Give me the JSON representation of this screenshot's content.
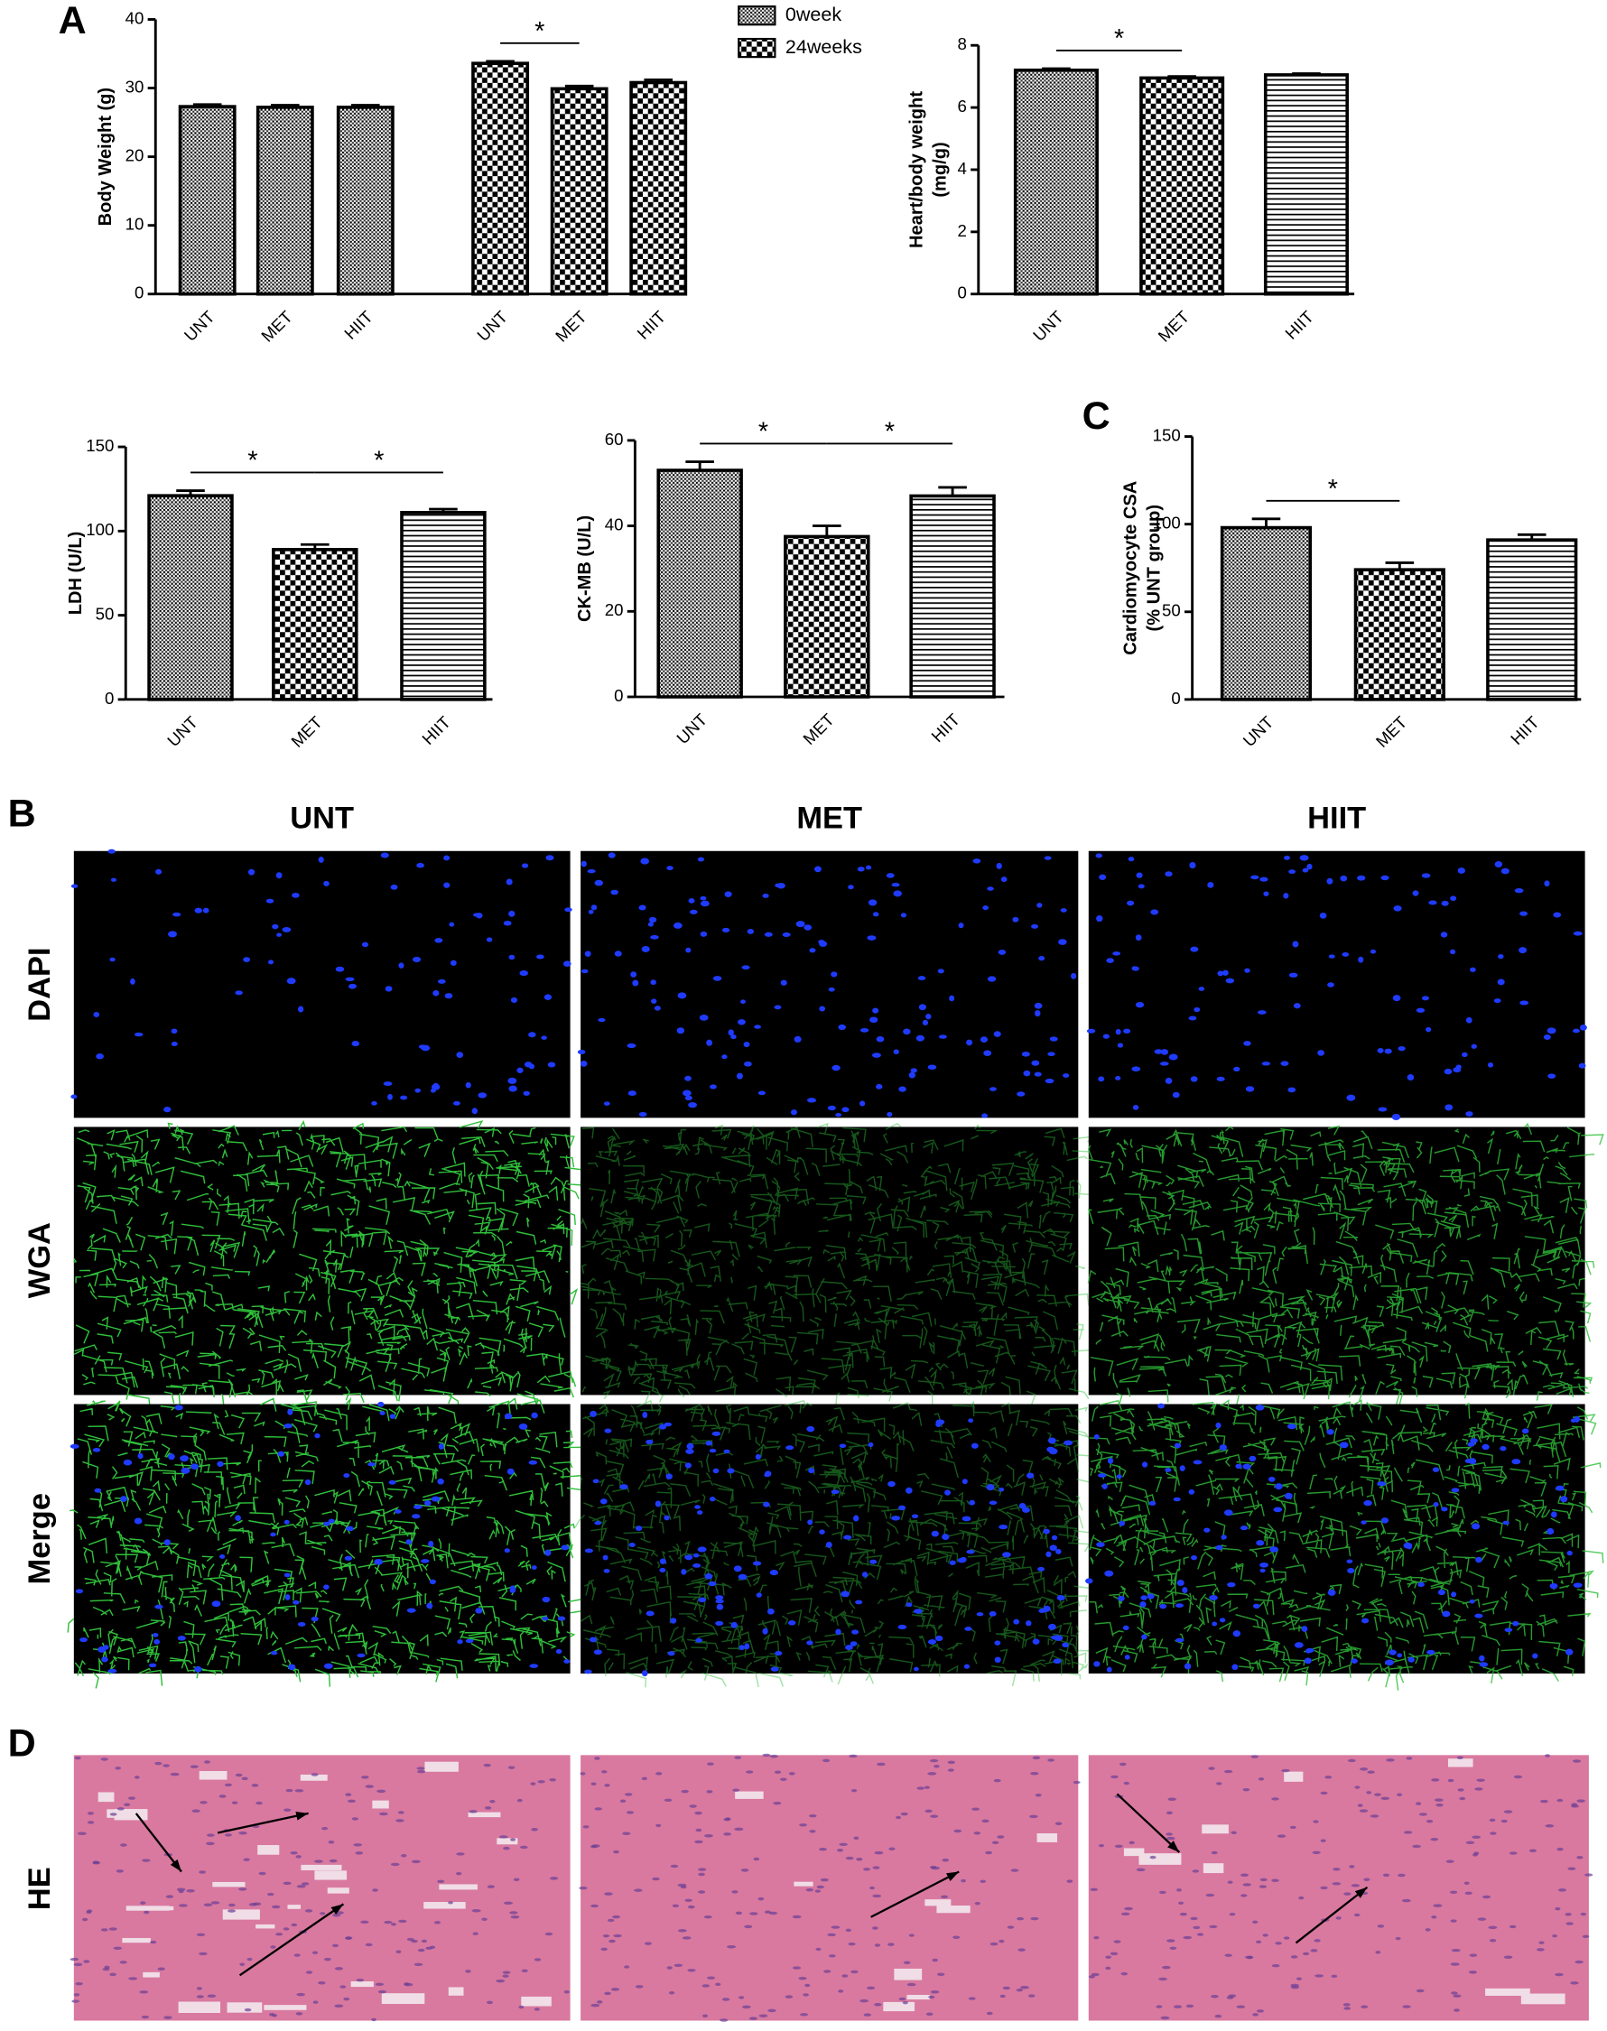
{
  "chart_data": [
    {
      "type": "bar",
      "ylabel": [
        "Body Weight (g)"
      ],
      "categories": [
        "UNT",
        "MET",
        "HIIT"
      ],
      "series": [
        {
          "name": "0week",
          "pattern": "dots",
          "values": [
            27.3,
            27.2,
            27.2
          ],
          "errors": [
            0.3,
            0.3,
            0.3
          ]
        },
        {
          "name": "24weeks",
          "pattern": "checker",
          "values": [
            33.6,
            29.9,
            30.8
          ],
          "errors": [
            0.3,
            0.4,
            0.4
          ]
        }
      ],
      "ylim": [
        0,
        40
      ],
      "yticks": [
        0,
        10,
        20,
        30,
        40
      ],
      "significance": [
        {
          "series": 1,
          "from": 0,
          "to": 1,
          "label": "*"
        }
      ]
    },
    {
      "type": "bar",
      "ylabel": [
        "Heart/body weight",
        "(mg/g)"
      ],
      "categories": [
        "UNT",
        "MET",
        "HIIT"
      ],
      "values": [
        7.2,
        6.95,
        7.05
      ],
      "errors": [
        0.05,
        0.05,
        0.04
      ],
      "patterns": [
        "dots",
        "checker",
        "hlines"
      ],
      "ylim": [
        0,
        8
      ],
      "yticks": [
        0,
        2,
        4,
        6,
        8
      ],
      "significance": [
        {
          "from": 0,
          "to": 1,
          "label": "*"
        }
      ]
    },
    {
      "type": "bar",
      "ylabel": [
        "LDH (U/L)"
      ],
      "categories": [
        "UNT",
        "MET",
        "HIIT"
      ],
      "values": [
        121,
        89,
        111
      ],
      "errors": [
        3,
        3,
        2
      ],
      "patterns": [
        "dots",
        "checker",
        "hlines"
      ],
      "ylim": [
        0,
        150
      ],
      "yticks": [
        0,
        50,
        100,
        150
      ],
      "significance": [
        {
          "from": 0,
          "to": 1,
          "label": "*"
        },
        {
          "from": 1,
          "to": 2,
          "label": "*"
        }
      ]
    },
    {
      "type": "bar",
      "ylabel": [
        "CK-MB (U/L)"
      ],
      "categories": [
        "UNT",
        "MET",
        "HIIT"
      ],
      "values": [
        53,
        37.5,
        47
      ],
      "errors": [
        2,
        2.5,
        2
      ],
      "patterns": [
        "dots",
        "checker",
        "hlines"
      ],
      "ylim": [
        0,
        60
      ],
      "yticks": [
        0,
        20,
        40,
        60
      ],
      "significance": [
        {
          "from": 0,
          "to": 1,
          "label": "*"
        },
        {
          "from": 1,
          "to": 2,
          "label": "*"
        }
      ]
    },
    {
      "type": "bar",
      "ylabel": [
        "Cardiomyocyte CSA",
        "(% UNT group)"
      ],
      "categories": [
        "UNT",
        "MET",
        "HIIT"
      ],
      "values": [
        98,
        74,
        91
      ],
      "errors": [
        5,
        4,
        3
      ],
      "patterns": [
        "dots",
        "checker",
        "hlines"
      ],
      "ylim": [
        0,
        150
      ],
      "yticks": [
        0,
        50,
        100,
        150
      ],
      "significance": [
        {
          "from": 0,
          "to": 1,
          "label": "*"
        }
      ]
    }
  ],
  "figure": {
    "panel_labels": [
      "A",
      "B",
      "C",
      "D"
    ],
    "column_headers": [
      "UNT",
      "MET",
      "HIIT"
    ],
    "row_labels": [
      "DAPI",
      "WGA",
      "Merge",
      "HE"
    ]
  }
}
